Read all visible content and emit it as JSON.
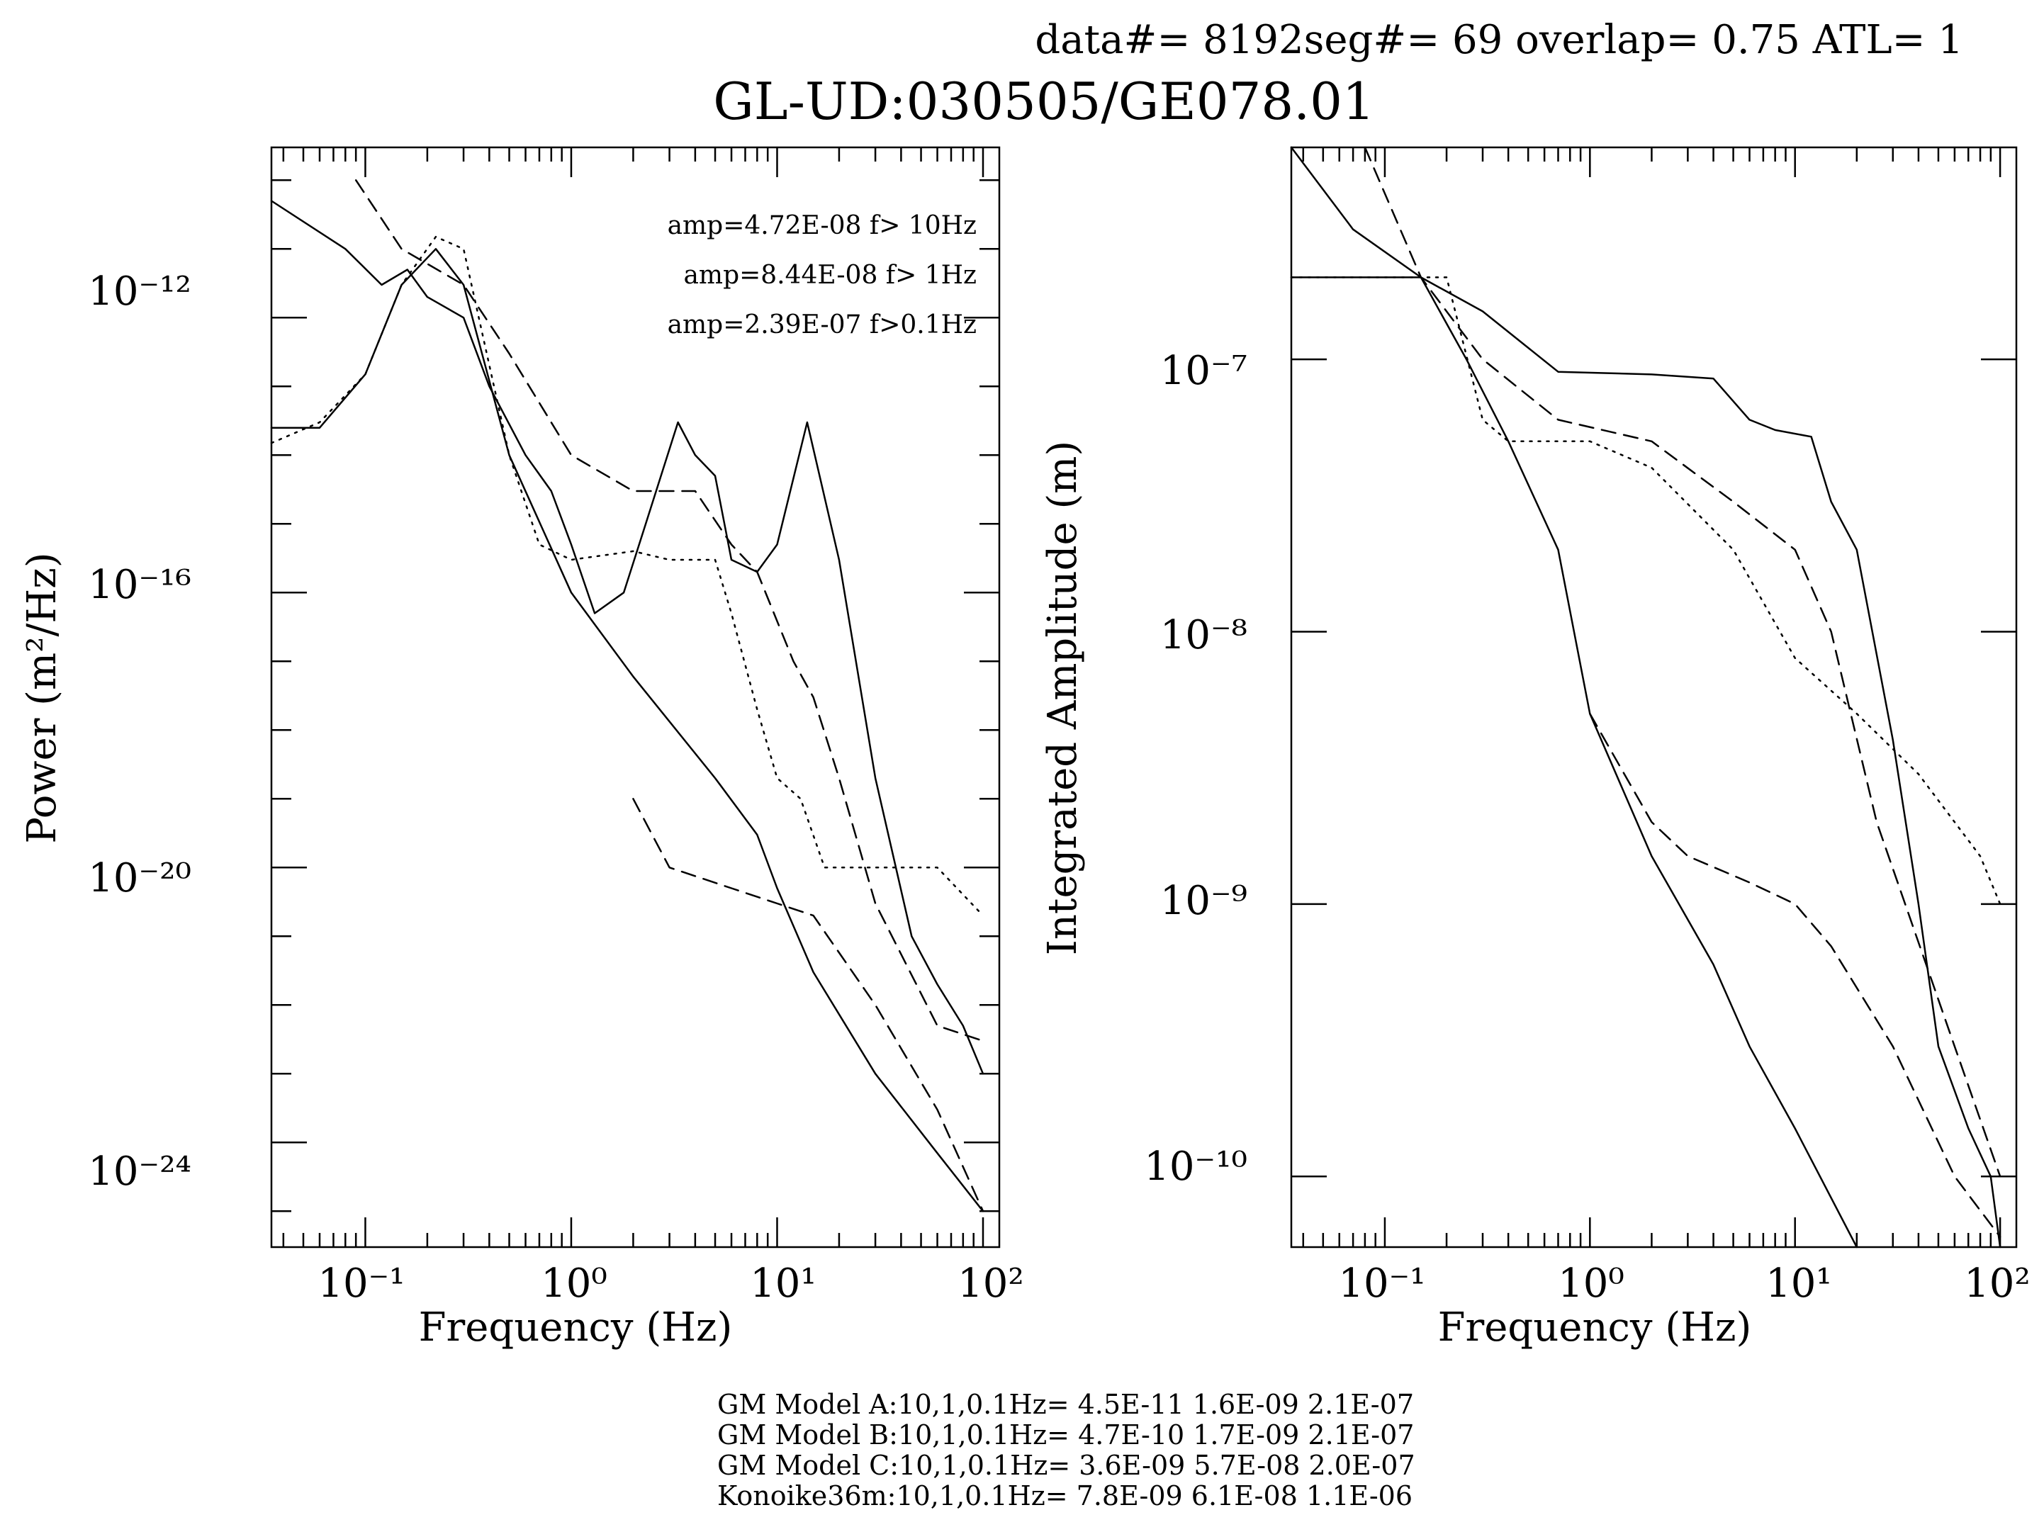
{
  "header": {
    "params": "data#= 8192seg#= 69 overlap=  0.75 ATL= 1",
    "title": "GL-UD:030505/GE078.01"
  },
  "chart_data": [
    {
      "type": "line",
      "xlabel": "Frequency (Hz)",
      "ylabel": "Power (m²/Hz)",
      "x_scale": "log",
      "y_scale": "log",
      "xlim": [
        0.035,
        120
      ],
      "ylim": [
        3e-26,
        3e-10
      ],
      "x_ticks": [
        "10⁻¹",
        "10⁰",
        "10¹",
        "10²"
      ],
      "y_ticks": [
        "10⁻¹²",
        "10⁻¹⁶",
        "10⁻²⁰",
        "10⁻²⁴"
      ],
      "annotations": [
        "amp=4.72E-08 f> 10Hz",
        "amp=8.44E-08 f>  1Hz",
        "amp=2.39E-07 f>0.1Hz"
      ],
      "series": [
        {
          "style": "solid",
          "points": [
            [
              0.035,
              2.5e-14
            ],
            [
              0.06,
              2.5e-14
            ],
            [
              0.1,
              1.5e-13
            ],
            [
              0.15,
              3e-12
            ],
            [
              0.22,
              1e-11
            ],
            [
              0.3,
              3e-12
            ],
            [
              0.5,
              1e-14
            ],
            [
              1.0,
              1e-16
            ],
            [
              2.0,
              6e-18
            ],
            [
              5.0,
              2e-19
            ],
            [
              8.0,
              3e-20
            ],
            [
              10.0,
              5e-21
            ],
            [
              15.0,
              3e-22
            ],
            [
              30.0,
              1e-23
            ],
            [
              60.0,
              7e-25
            ],
            [
              100.0,
              1e-25
            ]
          ]
        },
        {
          "style": "dotted",
          "points": [
            [
              0.035,
              1.5e-14
            ],
            [
              0.06,
              3e-14
            ],
            [
              0.1,
              1.5e-13
            ],
            [
              0.15,
              3e-12
            ],
            [
              0.22,
              1.5e-11
            ],
            [
              0.3,
              1e-11
            ],
            [
              0.5,
              1e-14
            ],
            [
              0.7,
              5e-16
            ],
            [
              1.0,
              3e-16
            ],
            [
              2.0,
              4e-16
            ],
            [
              3.0,
              3e-16
            ],
            [
              5.0,
              3e-16
            ],
            [
              6.0,
              5e-17
            ],
            [
              8.0,
              2e-18
            ],
            [
              10.0,
              2e-19
            ],
            [
              13.0,
              1e-19
            ],
            [
              17.0,
              1e-20
            ],
            [
              25.0,
              1e-20
            ],
            [
              60.0,
              1e-20
            ],
            [
              100.0,
              2e-21
            ]
          ]
        },
        {
          "style": "dashed",
          "points": [
            [
              0.09,
              1e-10
            ],
            [
              0.15,
              1e-11
            ],
            [
              0.3,
              3e-12
            ],
            [
              0.5,
              3e-13
            ],
            [
              1.0,
              1e-14
            ],
            [
              2.0,
              3e-15
            ],
            [
              4.0,
              3e-15
            ],
            [
              6.0,
              5e-16
            ],
            [
              8.0,
              2e-16
            ],
            [
              12.0,
              1e-17
            ],
            [
              15.0,
              3e-18
            ],
            [
              20.0,
              2e-19
            ],
            [
              30.0,
              3e-21
            ],
            [
              60.0,
              5e-23
            ],
            [
              100.0,
              3e-23
            ]
          ]
        },
        {
          "style": "dashed",
          "points": [
            [
              2.0,
              1e-19
            ],
            [
              3.0,
              1e-20
            ],
            [
              6.0,
              5e-21
            ],
            [
              10.0,
              3e-21
            ],
            [
              15.0,
              2e-21
            ],
            [
              30.0,
              1e-22
            ],
            [
              60.0,
              3e-24
            ],
            [
              100.0,
              1e-25
            ]
          ]
        },
        {
          "style": "solid",
          "points": [
            [
              0.035,
              5e-11
            ],
            [
              0.08,
              1e-11
            ],
            [
              0.12,
              3e-12
            ],
            [
              0.16,
              5e-12
            ],
            [
              0.2,
              2e-12
            ],
            [
              0.3,
              1e-12
            ],
            [
              0.4,
              1e-13
            ],
            [
              0.6,
              1e-14
            ],
            [
              0.8,
              3e-15
            ],
            [
              1.0,
              5e-16
            ],
            [
              1.3,
              5e-17
            ],
            [
              1.8,
              1e-16
            ],
            [
              2.3,
              1e-15
            ],
            [
              3.3,
              3e-14
            ],
            [
              4.0,
              1e-14
            ],
            [
              5.0,
              5e-15
            ],
            [
              6.0,
              3e-16
            ],
            [
              8.0,
              2e-16
            ],
            [
              10.0,
              5e-16
            ],
            [
              14.0,
              3e-14
            ],
            [
              20.0,
              3e-16
            ],
            [
              30.0,
              2e-19
            ],
            [
              45.0,
              1e-21
            ],
            [
              60.0,
              2e-22
            ],
            [
              80.0,
              5e-23
            ],
            [
              100.0,
              1e-23
            ]
          ]
        }
      ]
    },
    {
      "type": "line",
      "xlabel": "Frequency (Hz)",
      "ylabel": "Integrated Amplitude (m)",
      "x_scale": "log",
      "y_scale": "log",
      "xlim": [
        0.035,
        120
      ],
      "ylim": [
        5.5e-11,
        6e-07
      ],
      "x_ticks": [
        "10⁻¹",
        "10⁰",
        "10¹",
        "10²"
      ],
      "y_ticks": [
        "10⁻⁷",
        "10⁻⁸",
        "10⁻⁹",
        "10⁻¹⁰"
      ],
      "series": [
        {
          "style": "solid",
          "points": [
            [
              0.035,
              6e-07
            ],
            [
              0.07,
              3e-07
            ],
            [
              0.15,
              2e-07
            ],
            [
              0.25,
              1e-07
            ],
            [
              0.4,
              5e-08
            ],
            [
              0.7,
              2e-08
            ],
            [
              1.0,
              5e-09
            ],
            [
              2.0,
              1.5e-09
            ],
            [
              4.0,
              6e-10
            ],
            [
              6.0,
              3e-10
            ],
            [
              10.0,
              1.5e-10
            ],
            [
              20.0,
              5.5e-11
            ]
          ]
        },
        {
          "style": "dotted",
          "points": [
            [
              0.035,
              2e-07
            ],
            [
              0.2,
              2e-07
            ],
            [
              0.3,
              6e-08
            ],
            [
              0.4,
              5e-08
            ],
            [
              1.0,
              5e-08
            ],
            [
              2.0,
              4e-08
            ],
            [
              5.0,
              2e-08
            ],
            [
              10.0,
              8e-09
            ],
            [
              20.0,
              5e-09
            ],
            [
              40.0,
              3e-09
            ],
            [
              80.0,
              1.5e-09
            ],
            [
              100.0,
              1e-09
            ]
          ]
        },
        {
          "style": "dashed",
          "points": [
            [
              0.08,
              6e-07
            ],
            [
              0.15,
              2e-07
            ],
            [
              0.3,
              1e-07
            ],
            [
              0.7,
              6e-08
            ],
            [
              2.0,
              5e-08
            ],
            [
              5.0,
              3e-08
            ],
            [
              10.0,
              2e-08
            ],
            [
              15.0,
              1e-08
            ],
            [
              25.0,
              2e-09
            ],
            [
              60.0,
              3e-10
            ],
            [
              100.0,
              1e-10
            ]
          ]
        },
        {
          "style": "dashed",
          "points": [
            [
              1.0,
              5e-09
            ],
            [
              2.0,
              2e-09
            ],
            [
              3.0,
              1.5e-09
            ],
            [
              6.0,
              1.2e-09
            ],
            [
              10.0,
              1e-09
            ],
            [
              15.0,
              7e-10
            ],
            [
              30.0,
              3e-10
            ],
            [
              60.0,
              1e-10
            ],
            [
              100.0,
              6e-11
            ]
          ]
        },
        {
          "style": "solid",
          "points": [
            [
              0.035,
              2e-07
            ],
            [
              0.15,
              2e-07
            ],
            [
              0.3,
              1.5e-07
            ],
            [
              0.7,
              9e-08
            ],
            [
              2.0,
              8.8e-08
            ],
            [
              4.0,
              8.5e-08
            ],
            [
              6.0,
              6e-08
            ],
            [
              8.0,
              5.5e-08
            ],
            [
              12.0,
              5.2e-08
            ],
            [
              15.0,
              3e-08
            ],
            [
              20.0,
              2e-08
            ],
            [
              30.0,
              4e-09
            ],
            [
              40.0,
              1e-09
            ],
            [
              50.0,
              3e-10
            ],
            [
              70.0,
              1.5e-10
            ],
            [
              90.0,
              1e-10
            ],
            [
              100.0,
              5.5e-11
            ]
          ]
        }
      ]
    }
  ],
  "footer": {
    "lines": [
      "GM Model A:10,1,0.1Hz= 4.5E-11 1.6E-09 2.1E-07",
      "GM Model B:10,1,0.1Hz= 4.7E-10 1.7E-09 2.1E-07",
      "GM Model C:10,1,0.1Hz= 3.6E-09 5.7E-08 2.0E-07",
      "Konoike36m:10,1,0.1Hz= 7.8E-09 6.1E-08 1.1E-06"
    ]
  }
}
